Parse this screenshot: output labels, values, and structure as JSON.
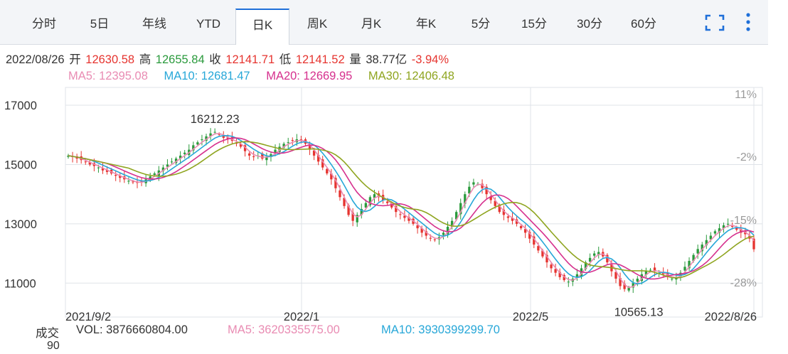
{
  "tabs": [
    {
      "label": "分时"
    },
    {
      "label": "5日"
    },
    {
      "label": "年线"
    },
    {
      "label": "YTD"
    },
    {
      "label": "日K",
      "active": true
    },
    {
      "label": "周K"
    },
    {
      "label": "月K"
    },
    {
      "label": "年K"
    },
    {
      "label": "5分"
    },
    {
      "label": "15分"
    },
    {
      "label": "30分"
    },
    {
      "label": "60分"
    }
  ],
  "toolbar": {
    "fullscreen_icon": "fullscreen-icon",
    "more_icon": "more-vertical-icon"
  },
  "quote": {
    "date": "2022/08/26",
    "open_label": "开",
    "open": "12630.58",
    "high_label": "高",
    "high": "12655.84",
    "close_label": "收",
    "close": "12141.71",
    "low_label": "低",
    "low": "12141.52",
    "volume_label": "量",
    "volume": "38.77亿",
    "change": "-3.94%"
  },
  "ma": {
    "ma5": "MA5: 12395.08",
    "ma10": "MA10: 12681.47",
    "ma20": "MA20: 12669.95",
    "ma30": "MA30: 12406.48"
  },
  "volume_bar": {
    "label": "成交",
    "vol": "VOL: 3876660804.00",
    "ma5": "MA5: 3620335575.00",
    "ma10": "MA10: 3930399299.70",
    "axis_top": "90"
  },
  "colors": {
    "up": "#2a9a3c",
    "down": "#e6342f",
    "ma5": "#e98cb3",
    "ma10": "#27a7d8",
    "ma20": "#d6308e",
    "ma30": "#8fa520",
    "grid": "#dfe3e8",
    "accent": "#1e6fd9"
  },
  "chart_data": {
    "type": "candlestick",
    "y_ticks": [
      11000,
      13000,
      15000,
      17000
    ],
    "ylim": [
      10000,
      17600
    ],
    "pct_ticks": [
      "11%",
      "-2%",
      "-15%",
      "-28%"
    ],
    "x_labels": [
      "2021/9/2",
      "2022/1",
      "2022/5",
      "2022/8/26"
    ],
    "annotations": [
      {
        "label": "16212.23",
        "value": 16212.23,
        "kind": "high"
      },
      {
        "label": "10565.13",
        "value": 10565.13,
        "kind": "low"
      }
    ],
    "close": [
      15300,
      15250,
      15200,
      15150,
      15080,
      15000,
      14950,
      14900,
      14800,
      14750,
      14700,
      14620,
      14550,
      14500,
      14450,
      14400,
      14380,
      14420,
      14500,
      14600,
      14700,
      14800,
      14900,
      15000,
      15100,
      15200,
      15300,
      15400,
      15500,
      15650,
      15750,
      15850,
      15950,
      16050,
      16100,
      16000,
      15900,
      15850,
      15800,
      15700,
      15600,
      15450,
      15300,
      15250,
      15300,
      15200,
      15250,
      15350,
      15500,
      15600,
      15700,
      15750,
      15800,
      15850,
      15800,
      15700,
      15500,
      15300,
      15100,
      14900,
      14700,
      14500,
      14200,
      13900,
      13600,
      13300,
      13100,
      13300,
      13500,
      13700,
      13900,
      14000,
      13900,
      13800,
      13700,
      13550,
      13400,
      13300,
      13200,
      13100,
      13000,
      12850,
      12700,
      12600,
      12500,
      12450,
      12550,
      12700,
      12900,
      13100,
      13400,
      13700,
      14000,
      14250,
      14400,
      14350,
      14200,
      14000,
      13800,
      13600,
      13400,
      13300,
      13200,
      13100,
      13000,
      12850,
      12700,
      12500,
      12300,
      12100,
      11900,
      11700,
      11500,
      11350,
      11200,
      11100,
      11050,
      11150,
      11300,
      11500,
      11700,
      11850,
      12000,
      12050,
      11900,
      11700,
      11400,
      11150,
      10900,
      10800,
      10850,
      11000,
      11150,
      11300,
      11400,
      11450,
      11400,
      11350,
      11300,
      11200,
      11150,
      11200,
      11350,
      11550,
      11750,
      11950,
      12150,
      12300,
      12450,
      12600,
      12750,
      12850,
      12950,
      13000,
      12900,
      12800,
      12700,
      12650,
      12500,
      12141.71
    ]
  }
}
